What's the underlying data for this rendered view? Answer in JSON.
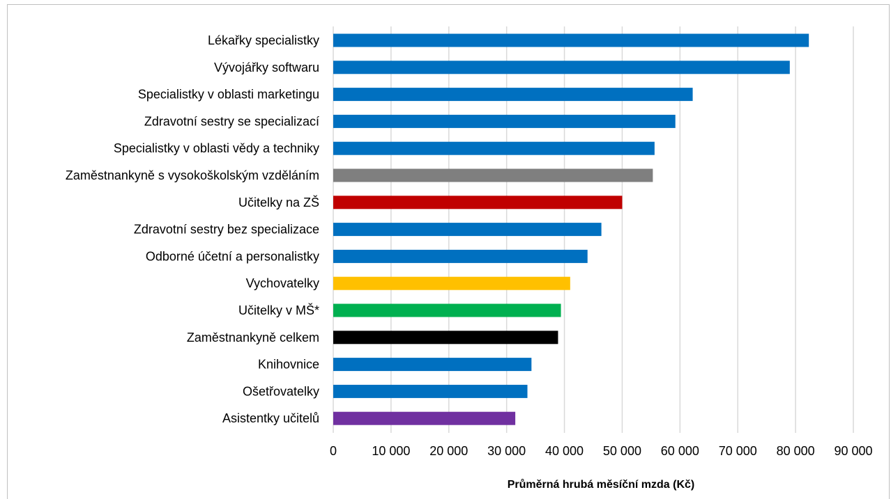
{
  "chart_data": {
    "type": "bar",
    "orientation": "horizontal",
    "xlabel": "Průměrná hrubá měsíční mzda (Kč)",
    "ylabel": "",
    "xlim": [
      0,
      90000
    ],
    "ticks": [
      "0",
      "10 000",
      "20 000",
      "30 000",
      "40 000",
      "50 000",
      "60 000",
      "70 000",
      "80 000",
      "90 000"
    ],
    "grid": true,
    "categories": [
      "Lékařky specialistky",
      "Vývojářky softwaru",
      "Specialistky v oblasti marketingu",
      "Zdravotní sestry se specializací",
      "Specialistky v oblasti vědy a techniky",
      "Zaměstnankyně s vysokoškolským vzděláním",
      "Učitelky na ZŠ",
      "Zdravotní sestry bez specializace",
      "Odborné účetní a personalistky",
      "Vychovatelky",
      "Učitelky v MŠ*",
      "Zaměstnankyně celkem",
      "Knihovnice",
      "Ošetřovatelky",
      "Asistentky učitelů"
    ],
    "values": [
      82300,
      79000,
      62200,
      59200,
      55600,
      55300,
      50000,
      46400,
      44000,
      41000,
      39400,
      38900,
      34300,
      33600,
      31500
    ],
    "colors": [
      "#0070c0",
      "#0070c0",
      "#0070c0",
      "#0070c0",
      "#0070c0",
      "#7f7f7f",
      "#c00000",
      "#0070c0",
      "#0070c0",
      "#ffc000",
      "#00b050",
      "#000000",
      "#0070c0",
      "#0070c0",
      "#7030a0"
    ]
  }
}
